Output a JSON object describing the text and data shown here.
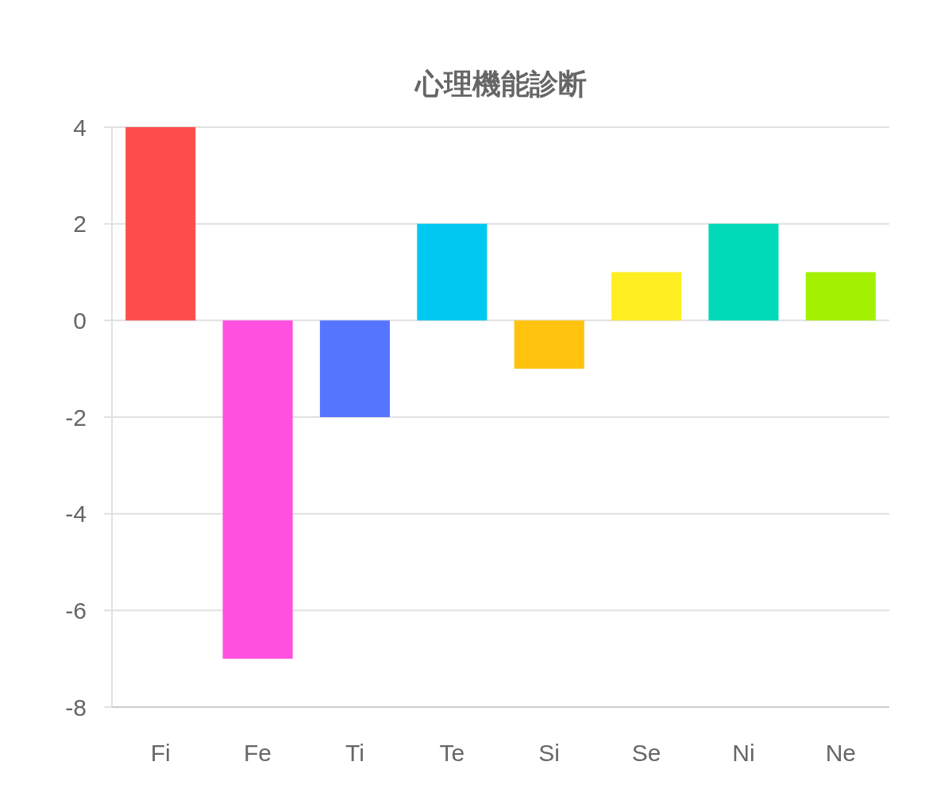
{
  "chart_data": {
    "type": "bar",
    "title": "心理機能診断",
    "categories": [
      "Fi",
      "Fe",
      "Ti",
      "Te",
      "Si",
      "Se",
      "Ni",
      "Ne"
    ],
    "values": [
      4,
      -7,
      -2,
      2,
      -1,
      1,
      2,
      1
    ],
    "colors": [
      "#ff4d4d",
      "#ff50e0",
      "#5675ff",
      "#00c8f0",
      "#ffc20e",
      "#ffee22",
      "#00d9b8",
      "#a3f000"
    ],
    "ylim": [
      -8,
      4
    ],
    "yticks": [
      -8,
      -6,
      -4,
      -2,
      0,
      2,
      4
    ],
    "grid": "y"
  }
}
